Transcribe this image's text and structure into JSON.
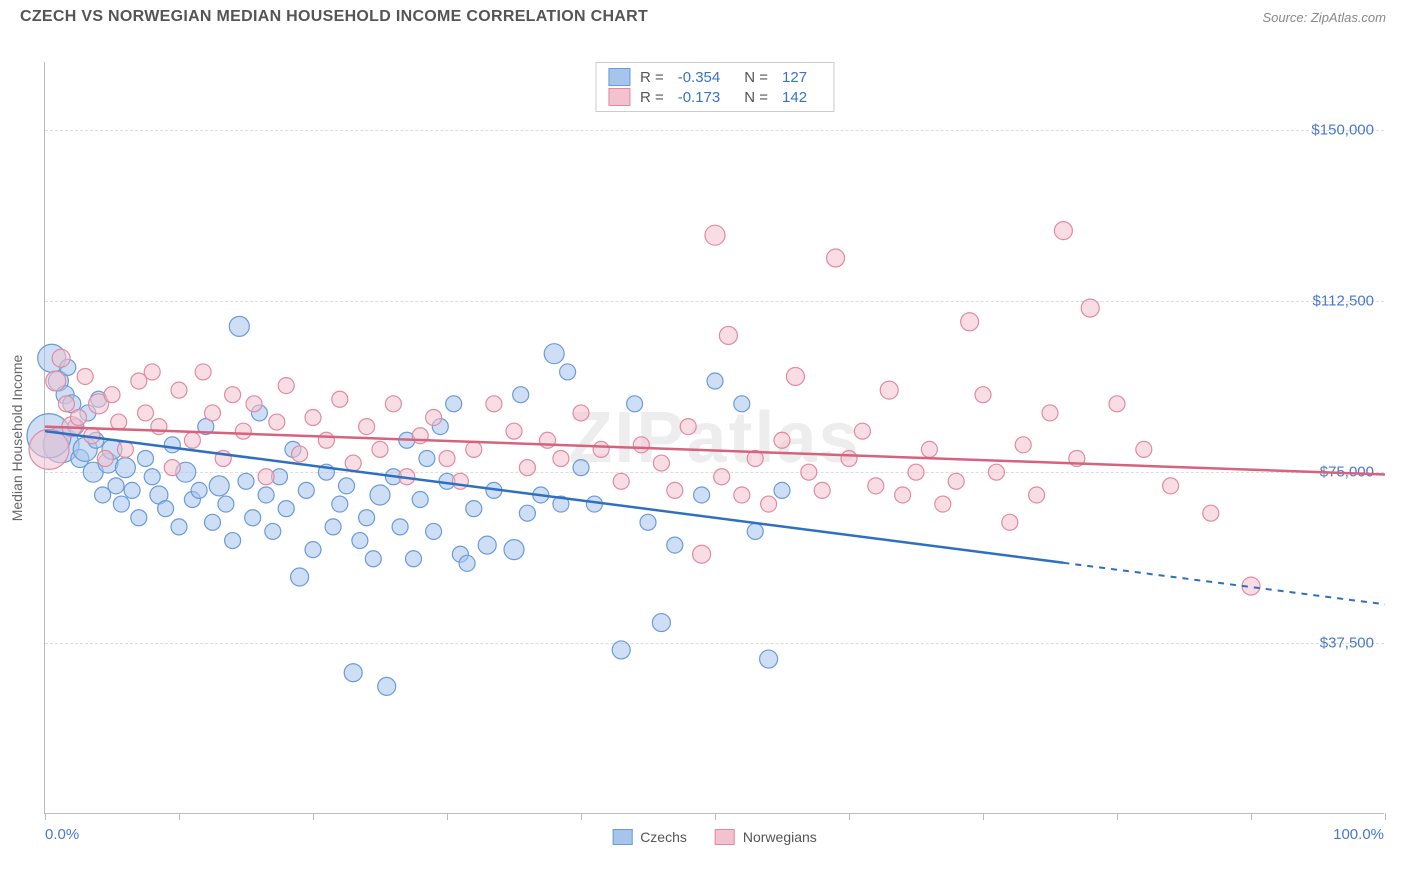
{
  "header": {
    "title": "CZECH VS NORWEGIAN MEDIAN HOUSEHOLD INCOME CORRELATION CHART",
    "source_prefix": "Source: ",
    "source_name": "ZipAtlas.com"
  },
  "watermark": "ZIPatlas",
  "chart": {
    "type": "scatter",
    "y_axis_title": "Median Household Income",
    "x_min": 0,
    "x_max": 100,
    "y_min": 0,
    "y_max": 165000,
    "x_label_min": "0.0%",
    "x_label_max": "100.0%",
    "y_gridlines": [
      {
        "value": 37500,
        "label": "$37,500"
      },
      {
        "value": 75000,
        "label": "$75,000"
      },
      {
        "value": 112500,
        "label": "$112,500"
      },
      {
        "value": 150000,
        "label": "$150,000"
      }
    ],
    "x_ticks": [
      0,
      10,
      20,
      30,
      40,
      50,
      60,
      70,
      80,
      90,
      100
    ],
    "series": [
      {
        "id": "czechs",
        "name": "Czechs",
        "fill": "#a6c4ec",
        "stroke": "#6a9bd8",
        "line_color": "#2f6fc1",
        "R": "-0.354",
        "N": "127",
        "trend": {
          "y_at_x0": 84000,
          "y_at_x100": 46000,
          "solid_until_x": 76
        },
        "points": [
          {
            "x": 0.5,
            "y": 100000,
            "r": 14
          },
          {
            "x": 1,
            "y": 95000,
            "r": 10
          },
          {
            "x": 1.2,
            "y": 81000,
            "r": 18
          },
          {
            "x": 1.5,
            "y": 92000,
            "r": 9
          },
          {
            "x": 1.7,
            "y": 98000,
            "r": 8
          },
          {
            "x": 2,
            "y": 90000,
            "r": 9
          },
          {
            "x": 0.3,
            "y": 83000,
            "r": 22
          },
          {
            "x": 2.3,
            "y": 85000,
            "r": 8
          },
          {
            "x": 2.6,
            "y": 78000,
            "r": 9
          },
          {
            "x": 3,
            "y": 80000,
            "r": 12
          },
          {
            "x": 3.2,
            "y": 88000,
            "r": 8
          },
          {
            "x": 3.6,
            "y": 75000,
            "r": 10
          },
          {
            "x": 3.8,
            "y": 82000,
            "r": 8
          },
          {
            "x": 4,
            "y": 91000,
            "r": 8
          },
          {
            "x": 4.3,
            "y": 70000,
            "r": 8
          },
          {
            "x": 4.7,
            "y": 77000,
            "r": 10
          },
          {
            "x": 5,
            "y": 80000,
            "r": 10
          },
          {
            "x": 5.3,
            "y": 72000,
            "r": 8
          },
          {
            "x": 5.7,
            "y": 68000,
            "r": 8
          },
          {
            "x": 6,
            "y": 76000,
            "r": 10
          },
          {
            "x": 6.5,
            "y": 71000,
            "r": 8
          },
          {
            "x": 7,
            "y": 65000,
            "r": 8
          },
          {
            "x": 7.5,
            "y": 78000,
            "r": 8
          },
          {
            "x": 8,
            "y": 74000,
            "r": 8
          },
          {
            "x": 8.5,
            "y": 70000,
            "r": 9
          },
          {
            "x": 9,
            "y": 67000,
            "r": 8
          },
          {
            "x": 9.5,
            "y": 81000,
            "r": 8
          },
          {
            "x": 10,
            "y": 63000,
            "r": 8
          },
          {
            "x": 10.5,
            "y": 75000,
            "r": 10
          },
          {
            "x": 11,
            "y": 69000,
            "r": 8
          },
          {
            "x": 11.5,
            "y": 71000,
            "r": 8
          },
          {
            "x": 12,
            "y": 85000,
            "r": 8
          },
          {
            "x": 12.5,
            "y": 64000,
            "r": 8
          },
          {
            "x": 13,
            "y": 72000,
            "r": 10
          },
          {
            "x": 13.5,
            "y": 68000,
            "r": 8
          },
          {
            "x": 14,
            "y": 60000,
            "r": 8
          },
          {
            "x": 14.5,
            "y": 107000,
            "r": 10
          },
          {
            "x": 15,
            "y": 73000,
            "r": 8
          },
          {
            "x": 15.5,
            "y": 65000,
            "r": 8
          },
          {
            "x": 16,
            "y": 88000,
            "r": 8
          },
          {
            "x": 16.5,
            "y": 70000,
            "r": 8
          },
          {
            "x": 17,
            "y": 62000,
            "r": 8
          },
          {
            "x": 17.5,
            "y": 74000,
            "r": 8
          },
          {
            "x": 18,
            "y": 67000,
            "r": 8
          },
          {
            "x": 18.5,
            "y": 80000,
            "r": 8
          },
          {
            "x": 19,
            "y": 52000,
            "r": 9
          },
          {
            "x": 19.5,
            "y": 71000,
            "r": 8
          },
          {
            "x": 20,
            "y": 58000,
            "r": 8
          },
          {
            "x": 21,
            "y": 75000,
            "r": 8
          },
          {
            "x": 21.5,
            "y": 63000,
            "r": 8
          },
          {
            "x": 22,
            "y": 68000,
            "r": 8
          },
          {
            "x": 22.5,
            "y": 72000,
            "r": 8
          },
          {
            "x": 23,
            "y": 31000,
            "r": 9
          },
          {
            "x": 23.5,
            "y": 60000,
            "r": 8
          },
          {
            "x": 24,
            "y": 65000,
            "r": 8
          },
          {
            "x": 24.5,
            "y": 56000,
            "r": 8
          },
          {
            "x": 25,
            "y": 70000,
            "r": 10
          },
          {
            "x": 25.5,
            "y": 28000,
            "r": 9
          },
          {
            "x": 26,
            "y": 74000,
            "r": 8
          },
          {
            "x": 26.5,
            "y": 63000,
            "r": 8
          },
          {
            "x": 27,
            "y": 82000,
            "r": 8
          },
          {
            "x": 27.5,
            "y": 56000,
            "r": 8
          },
          {
            "x": 28,
            "y": 69000,
            "r": 8
          },
          {
            "x": 28.5,
            "y": 78000,
            "r": 8
          },
          {
            "x": 29,
            "y": 62000,
            "r": 8
          },
          {
            "x": 29.5,
            "y": 85000,
            "r": 8
          },
          {
            "x": 30,
            "y": 73000,
            "r": 8
          },
          {
            "x": 30.5,
            "y": 90000,
            "r": 8
          },
          {
            "x": 31,
            "y": 57000,
            "r": 8
          },
          {
            "x": 31.5,
            "y": 55000,
            "r": 8
          },
          {
            "x": 32,
            "y": 67000,
            "r": 8
          },
          {
            "x": 33,
            "y": 59000,
            "r": 9
          },
          {
            "x": 33.5,
            "y": 71000,
            "r": 8
          },
          {
            "x": 35,
            "y": 58000,
            "r": 10
          },
          {
            "x": 35.5,
            "y": 92000,
            "r": 8
          },
          {
            "x": 36,
            "y": 66000,
            "r": 8
          },
          {
            "x": 37,
            "y": 70000,
            "r": 8
          },
          {
            "x": 38,
            "y": 101000,
            "r": 10
          },
          {
            "x": 38.5,
            "y": 68000,
            "r": 8
          },
          {
            "x": 39,
            "y": 97000,
            "r": 8
          },
          {
            "x": 40,
            "y": 76000,
            "r": 8
          },
          {
            "x": 41,
            "y": 68000,
            "r": 8
          },
          {
            "x": 43,
            "y": 36000,
            "r": 9
          },
          {
            "x": 44,
            "y": 90000,
            "r": 8
          },
          {
            "x": 45,
            "y": 64000,
            "r": 8
          },
          {
            "x": 46,
            "y": 42000,
            "r": 9
          },
          {
            "x": 47,
            "y": 59000,
            "r": 8
          },
          {
            "x": 49,
            "y": 70000,
            "r": 8
          },
          {
            "x": 50,
            "y": 95000,
            "r": 8
          },
          {
            "x": 52,
            "y": 90000,
            "r": 8
          },
          {
            "x": 53,
            "y": 62000,
            "r": 8
          },
          {
            "x": 54,
            "y": 34000,
            "r": 9
          },
          {
            "x": 55,
            "y": 71000,
            "r": 8
          }
        ]
      },
      {
        "id": "norwegians",
        "name": "Norwegians",
        "fill": "#f3c2ce",
        "stroke": "#e08aa3",
        "line_color": "#d8617e",
        "R": "-0.173",
        "N": "142",
        "trend": {
          "y_at_x0": 85000,
          "y_at_x100": 74500,
          "solid_until_x": 100
        },
        "points": [
          {
            "x": 0.3,
            "y": 80000,
            "r": 20
          },
          {
            "x": 0.8,
            "y": 95000,
            "r": 10
          },
          {
            "x": 1.2,
            "y": 100000,
            "r": 9
          },
          {
            "x": 1.6,
            "y": 90000,
            "r": 8
          },
          {
            "x": 2,
            "y": 85000,
            "r": 10
          },
          {
            "x": 2.5,
            "y": 87000,
            "r": 8
          },
          {
            "x": 3,
            "y": 96000,
            "r": 8
          },
          {
            "x": 3.5,
            "y": 83000,
            "r": 8
          },
          {
            "x": 4,
            "y": 90000,
            "r": 10
          },
          {
            "x": 4.5,
            "y": 78000,
            "r": 8
          },
          {
            "x": 5,
            "y": 92000,
            "r": 8
          },
          {
            "x": 5.5,
            "y": 86000,
            "r": 8
          },
          {
            "x": 6,
            "y": 80000,
            "r": 8
          },
          {
            "x": 7,
            "y": 95000,
            "r": 8
          },
          {
            "x": 7.5,
            "y": 88000,
            "r": 8
          },
          {
            "x": 8,
            "y": 97000,
            "r": 8
          },
          {
            "x": 8.5,
            "y": 85000,
            "r": 8
          },
          {
            "x": 9.5,
            "y": 76000,
            "r": 8
          },
          {
            "x": 10,
            "y": 93000,
            "r": 8
          },
          {
            "x": 11,
            "y": 82000,
            "r": 8
          },
          {
            "x": 11.8,
            "y": 97000,
            "r": 8
          },
          {
            "x": 12.5,
            "y": 88000,
            "r": 8
          },
          {
            "x": 13.3,
            "y": 78000,
            "r": 8
          },
          {
            "x": 14,
            "y": 92000,
            "r": 8
          },
          {
            "x": 14.8,
            "y": 84000,
            "r": 8
          },
          {
            "x": 15.6,
            "y": 90000,
            "r": 8
          },
          {
            "x": 16.5,
            "y": 74000,
            "r": 8
          },
          {
            "x": 17.3,
            "y": 86000,
            "r": 8
          },
          {
            "x": 18,
            "y": 94000,
            "r": 8
          },
          {
            "x": 19,
            "y": 79000,
            "r": 8
          },
          {
            "x": 20,
            "y": 87000,
            "r": 8
          },
          {
            "x": 21,
            "y": 82000,
            "r": 8
          },
          {
            "x": 22,
            "y": 91000,
            "r": 8
          },
          {
            "x": 23,
            "y": 77000,
            "r": 8
          },
          {
            "x": 24,
            "y": 85000,
            "r": 8
          },
          {
            "x": 25,
            "y": 80000,
            "r": 8
          },
          {
            "x": 26,
            "y": 90000,
            "r": 8
          },
          {
            "x": 27,
            "y": 74000,
            "r": 8
          },
          {
            "x": 28,
            "y": 83000,
            "r": 8
          },
          {
            "x": 29,
            "y": 87000,
            "r": 8
          },
          {
            "x": 30,
            "y": 78000,
            "r": 8
          },
          {
            "x": 31,
            "y": 73000,
            "r": 8
          },
          {
            "x": 32,
            "y": 80000,
            "r": 8
          },
          {
            "x": 33.5,
            "y": 90000,
            "r": 8
          },
          {
            "x": 35,
            "y": 84000,
            "r": 8
          },
          {
            "x": 36,
            "y": 76000,
            "r": 8
          },
          {
            "x": 37.5,
            "y": 82000,
            "r": 8
          },
          {
            "x": 38.5,
            "y": 78000,
            "r": 8
          },
          {
            "x": 40,
            "y": 88000,
            "r": 8
          },
          {
            "x": 41.5,
            "y": 80000,
            "r": 8
          },
          {
            "x": 43,
            "y": 73000,
            "r": 8
          },
          {
            "x": 44.5,
            "y": 81000,
            "r": 8
          },
          {
            "x": 46,
            "y": 77000,
            "r": 8
          },
          {
            "x": 47,
            "y": 71000,
            "r": 8
          },
          {
            "x": 48,
            "y": 85000,
            "r": 8
          },
          {
            "x": 49,
            "y": 57000,
            "r": 9
          },
          {
            "x": 50,
            "y": 127000,
            "r": 10
          },
          {
            "x": 50.5,
            "y": 74000,
            "r": 8
          },
          {
            "x": 51,
            "y": 105000,
            "r": 9
          },
          {
            "x": 52,
            "y": 70000,
            "r": 8
          },
          {
            "x": 53,
            "y": 78000,
            "r": 8
          },
          {
            "x": 54,
            "y": 68000,
            "r": 8
          },
          {
            "x": 55,
            "y": 82000,
            "r": 8
          },
          {
            "x": 56,
            "y": 96000,
            "r": 9
          },
          {
            "x": 57,
            "y": 75000,
            "r": 8
          },
          {
            "x": 58,
            "y": 71000,
            "r": 8
          },
          {
            "x": 59,
            "y": 122000,
            "r": 9
          },
          {
            "x": 60,
            "y": 78000,
            "r": 8
          },
          {
            "x": 61,
            "y": 84000,
            "r": 8
          },
          {
            "x": 62,
            "y": 72000,
            "r": 8
          },
          {
            "x": 63,
            "y": 93000,
            "r": 9
          },
          {
            "x": 64,
            "y": 70000,
            "r": 8
          },
          {
            "x": 65,
            "y": 75000,
            "r": 8
          },
          {
            "x": 66,
            "y": 80000,
            "r": 8
          },
          {
            "x": 67,
            "y": 68000,
            "r": 8
          },
          {
            "x": 68,
            "y": 73000,
            "r": 8
          },
          {
            "x": 69,
            "y": 108000,
            "r": 9
          },
          {
            "x": 70,
            "y": 92000,
            "r": 8
          },
          {
            "x": 71,
            "y": 75000,
            "r": 8
          },
          {
            "x": 72,
            "y": 64000,
            "r": 8
          },
          {
            "x": 73,
            "y": 81000,
            "r": 8
          },
          {
            "x": 74,
            "y": 70000,
            "r": 8
          },
          {
            "x": 75,
            "y": 88000,
            "r": 8
          },
          {
            "x": 76,
            "y": 128000,
            "r": 9
          },
          {
            "x": 77,
            "y": 78000,
            "r": 8
          },
          {
            "x": 78,
            "y": 111000,
            "r": 9
          },
          {
            "x": 80,
            "y": 90000,
            "r": 8
          },
          {
            "x": 82,
            "y": 80000,
            "r": 8
          },
          {
            "x": 84,
            "y": 72000,
            "r": 8
          },
          {
            "x": 87,
            "y": 66000,
            "r": 8
          },
          {
            "x": 90,
            "y": 50000,
            "r": 9
          }
        ]
      }
    ]
  },
  "bottom_legend": [
    {
      "label": "Czechs",
      "fill": "#a6c4ec",
      "stroke": "#6a9bd8"
    },
    {
      "label": "Norwegians",
      "fill": "#f3c2ce",
      "stroke": "#e08aa3"
    }
  ]
}
